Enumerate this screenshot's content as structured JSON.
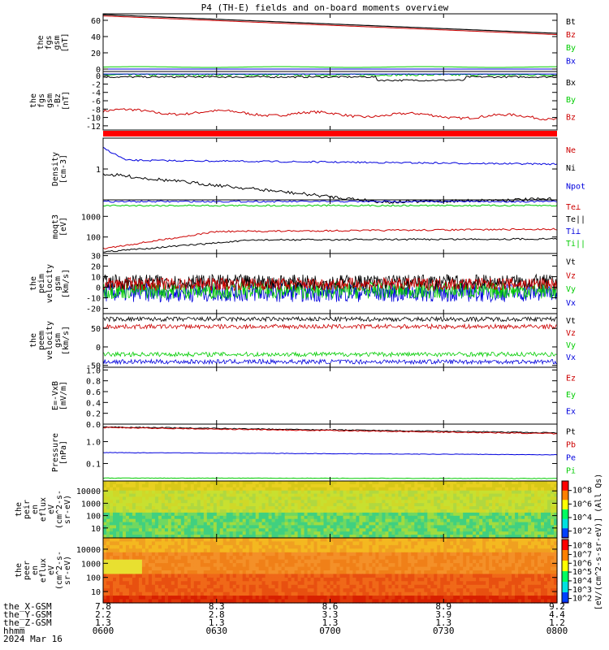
{
  "title": "P4 (TH-E) fields and on-board moments overview",
  "colors": {
    "black": "#000000",
    "red": "#cc0000",
    "green": "#00cc00",
    "blue": "#0000dd"
  },
  "chart_data": [
    {
      "type": "line",
      "ylabel": [
        "the",
        "fgs",
        "gsm",
        "[nT]"
      ],
      "yticks": [
        "60",
        "40",
        "20",
        "0"
      ],
      "ylim": [
        -3,
        68
      ],
      "legend": [
        {
          "name": "Bt",
          "color": "black"
        },
        {
          "name": "Bz",
          "color": "red"
        },
        {
          "name": "By",
          "color": "green"
        },
        {
          "name": "Bx",
          "color": "blue"
        }
      ],
      "series": [
        {
          "name": "Bt",
          "start": 67,
          "end": 44
        },
        {
          "name": "Bz",
          "start": 66,
          "end": 43
        },
        {
          "name": "By",
          "start": 3,
          "end": 2
        },
        {
          "name": "Bx",
          "start": 0,
          "end": 0
        }
      ]
    },
    {
      "type": "line",
      "ylabel": [
        "the",
        "fgs",
        "gsm",
        "-Bz",
        "[nT]"
      ],
      "yticks": [
        "0",
        "-2",
        "-4",
        "-6",
        "-8",
        "-10",
        "-12"
      ],
      "ylim": [
        -13,
        1
      ],
      "legend": [
        {
          "name": "Bx",
          "color": "black"
        },
        {
          "name": "By",
          "color": "green"
        },
        {
          "name": "Bz",
          "color": "red"
        }
      ],
      "series": [
        {
          "name": "Bx",
          "start": 0,
          "end": -0.5
        },
        {
          "name": "By",
          "start": 0.3,
          "end": 0.1
        },
        {
          "name": "Bz",
          "start": -8,
          "end": -12
        }
      ]
    },
    {
      "type": "line",
      "ylabel": [
        "Density",
        "[cm-3]"
      ],
      "yticks": [
        "1"
      ],
      "scale": "log",
      "legend": [
        {
          "name": "Ne",
          "color": "red"
        },
        {
          "name": "Ni",
          "color": "black"
        },
        {
          "name": "Npot",
          "color": "blue"
        }
      ]
    },
    {
      "type": "line",
      "ylabel": [
        "moqt3",
        "[eV]"
      ],
      "yticks": [
        "1000",
        "100"
      ],
      "scale": "log",
      "legend": [
        {
          "name": "Te⊥",
          "color": "red"
        },
        {
          "name": "Te||",
          "color": "black"
        },
        {
          "name": "Ti⊥",
          "color": "blue"
        },
        {
          "name": "Ti||",
          "color": "green"
        }
      ]
    },
    {
      "type": "line",
      "ylabel": [
        "the",
        "peim",
        "velocity",
        "gsm",
        "[km/s]"
      ],
      "yticks": [
        "30",
        "20",
        "10",
        "0",
        "-10",
        "-20"
      ],
      "ylim": [
        -25,
        32
      ],
      "legend": [
        {
          "name": "Vt",
          "color": "black"
        },
        {
          "name": "Vz",
          "color": "red"
        },
        {
          "name": "Vy",
          "color": "green"
        },
        {
          "name": "Vx",
          "color": "blue"
        }
      ]
    },
    {
      "type": "line",
      "ylabel": [
        "the",
        "peem",
        "velocity",
        "gsm",
        "[km/s]"
      ],
      "yticks": [
        "50",
        "0",
        "-50"
      ],
      "ylim": [
        -55,
        90
      ],
      "legend": [
        {
          "name": "Vt",
          "color": "black"
        },
        {
          "name": "Vz",
          "color": "red"
        },
        {
          "name": "Vy",
          "color": "green"
        },
        {
          "name": "Vx",
          "color": "blue"
        }
      ],
      "series": [
        {
          "name": "Vt",
          "level": 75
        },
        {
          "name": "Vz",
          "level": 55
        },
        {
          "name": "Vy",
          "level": -20
        },
        {
          "name": "Vx",
          "level": -40
        }
      ]
    },
    {
      "type": "line",
      "ylabel": [
        "E=-VxB",
        "[mV/m]"
      ],
      "yticks": [
        "1.0",
        "0.8",
        "0.6",
        "0.4",
        "0.2",
        "0.0"
      ],
      "ylim": [
        0,
        1.05
      ],
      "legend": [
        {
          "name": "Ez",
          "color": "red"
        },
        {
          "name": "Ey",
          "color": "green"
        },
        {
          "name": "Ex",
          "color": "blue"
        }
      ]
    },
    {
      "type": "line",
      "ylabel": [
        "Pressure",
        "[nPa]"
      ],
      "yticks": [
        "1.0",
        "0.1"
      ],
      "scale": "log",
      "legend": [
        {
          "name": "Pt",
          "color": "black"
        },
        {
          "name": "Pb",
          "color": "red"
        },
        {
          "name": "Pe",
          "color": "blue"
        },
        {
          "name": "Pi",
          "color": "green"
        }
      ],
      "series": [
        {
          "name": "Pt",
          "start": 1.3,
          "end": 0.85
        },
        {
          "name": "Pb",
          "start": 1.25,
          "end": 0.8
        },
        {
          "name": "Pe",
          "start": 0.2,
          "end": 0.17
        },
        {
          "name": "Pi",
          "start": 0.031,
          "end": 0.03
        }
      ]
    },
    {
      "type": "heatmap",
      "ylabel": [
        "the",
        "peir",
        "en",
        "eflux",
        "eV",
        "(cm^2-s-",
        "sr-eV)"
      ],
      "yticks": [
        "10000",
        "1000",
        "100",
        "10"
      ],
      "scale": "log"
    },
    {
      "type": "heatmap",
      "ylabel": [
        "the",
        "peer",
        "en",
        "eflux",
        "eV",
        "(cm^2-s-",
        "sr-eV)"
      ],
      "yticks": [
        "10000",
        "1000",
        "100",
        "10"
      ],
      "scale": "log"
    }
  ],
  "colorbar": {
    "label": "[eV/(cm^2-s-sr-eV)] (All Qs)",
    "top_ticks": [
      "10^8",
      "10^6",
      "10^4",
      "10^2"
    ],
    "bottom_ticks": [
      "10^8",
      "10^7",
      "10^6",
      "10^5",
      "10^4",
      "10^3",
      "10^2"
    ]
  },
  "xaxis": {
    "rows": [
      {
        "label": "the_X-GSM",
        "values": [
          "7.8",
          "8.3",
          "8.6",
          "8.9",
          "9.2"
        ]
      },
      {
        "label": "the_Y-GSM",
        "values": [
          "2.2",
          "2.8",
          "3.3",
          "3.9",
          "4.4"
        ]
      },
      {
        "label": "the_Z-GSM",
        "values": [
          "1.3",
          "1.3",
          "1.3",
          "1.3",
          "1.2"
        ]
      },
      {
        "label": "hhmm",
        "values": [
          "0600",
          "0630",
          "0700",
          "0730",
          "0800"
        ]
      }
    ],
    "date": "2024 Mar 16"
  }
}
